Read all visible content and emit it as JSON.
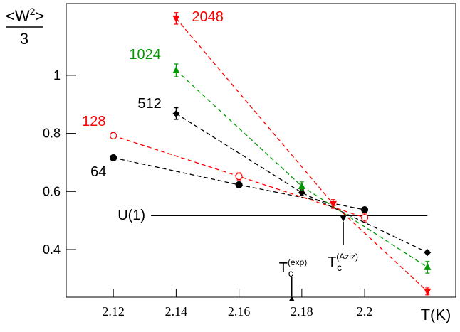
{
  "chart_data": {
    "type": "line",
    "xlabel": "T(K)",
    "ylabel": {
      "numerator": "<W",
      "power": "2",
      "close": ">",
      "denominator": "3"
    },
    "xlim": [
      2.105,
      2.229
    ],
    "ylim": [
      0.236,
      1.247
    ],
    "xticks": [
      2.12,
      2.14,
      2.16,
      2.18,
      2.2
    ],
    "yticks": [
      0.4,
      0.6,
      0.8,
      1
    ],
    "series": [
      {
        "name": "64",
        "color": "#000000",
        "marker": "circle",
        "x": [
          2.12,
          2.16,
          2.2
        ],
        "values": [
          0.716,
          0.623,
          0.537
        ],
        "errors": [
          0.008,
          0.008,
          0.008
        ]
      },
      {
        "name": "128",
        "color": "#ff0000",
        "marker": "open-circle",
        "x": [
          2.12,
          2.16,
          2.2
        ],
        "values": [
          0.792,
          0.652,
          0.51
        ],
        "errors": [
          0.01,
          0.012,
          0.015
        ]
      },
      {
        "name": "512",
        "color": "#000000",
        "marker": "diamond",
        "x": [
          2.14,
          2.18,
          2.22
        ],
        "values": [
          0.868,
          0.596,
          0.39
        ],
        "errors": [
          0.02,
          0.01,
          0.008
        ]
      },
      {
        "name": "1024",
        "color": "#009900",
        "marker": "triangle-up",
        "x": [
          2.14,
          2.18,
          2.22
        ],
        "values": [
          1.017,
          0.618,
          0.339
        ],
        "errors": [
          0.022,
          0.015,
          0.02
        ]
      },
      {
        "name": "2048",
        "color": "#ff0000",
        "marker": "triangle-down",
        "x": [
          2.14,
          2.19,
          2.22
        ],
        "values": [
          1.196,
          0.557,
          0.256
        ],
        "errors": [
          0.02,
          0.015,
          0.012
        ]
      }
    ],
    "reference_line": {
      "label": "U(1)",
      "value": 0.517,
      "x": [
        2.132,
        2.22
      ]
    },
    "markers": [
      {
        "base": "T",
        "sub": "c",
        "sup": "(exp)",
        "x": 2.1768
      },
      {
        "base": "T",
        "sub": "c",
        "sup": "(Aziz)",
        "x": 2.1932
      }
    ]
  }
}
